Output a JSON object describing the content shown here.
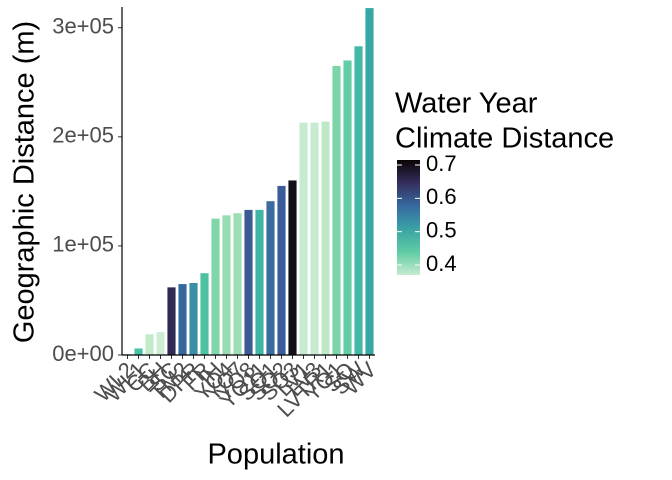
{
  "chart_data": {
    "type": "bar",
    "xlabel": "Population",
    "ylabel": "Geographic Distance (m)",
    "categories": [
      "WL2",
      "WL1",
      "CC",
      "BH",
      "SC",
      "TM2",
      "DPR",
      "FR",
      "IH",
      "YO4",
      "YO7",
      "YO8",
      "YO11",
      "SQ1",
      "SQ2",
      "SQ3",
      "LV1",
      "LV3",
      "LVTR1",
      "YO1",
      "SQ",
      "SW",
      "WV"
    ],
    "values": [
      1000,
      6000,
      19000,
      21000,
      62000,
      65000,
      66000,
      75000,
      125000,
      128000,
      130000,
      133000,
      133000,
      141000,
      155000,
      160000,
      213000,
      213000,
      214000,
      265000,
      270000,
      283000,
      318000
    ],
    "colors": [
      "#c6ebd0",
      "#48c1a4",
      "#c2eacb",
      "#cdeed4",
      "#2e2a54",
      "#35679f",
      "#3a8fa6",
      "#4dc2a3",
      "#7fd6a9",
      "#96dcb0",
      "#9ddeb3",
      "#3b5b95",
      "#40b5a6",
      "#3b6ca0",
      "#3a5c9a",
      "#120e1a",
      "#c6ebd0",
      "#c6ebd0",
      "#bfe8c9",
      "#7cd5a8",
      "#62cda4",
      "#43b9a5",
      "#36a8a4"
    ],
    "ylim": [
      0,
      319000
    ],
    "yticks": [
      {
        "value": 0,
        "label": "0e+00"
      },
      {
        "value": 100000,
        "label": "1e+05"
      },
      {
        "value": 200000,
        "label": "2e+05"
      },
      {
        "value": 300000,
        "label": "3e+05"
      }
    ],
    "colorbar": {
      "title": [
        "Water Year",
        " Climate Distance"
      ],
      "lim": [
        0.37,
        0.715
      ],
      "ticks": [
        0.4,
        0.5,
        0.6,
        0.7
      ],
      "colors": [
        "#c6ebd0",
        "#5fcca3",
        "#3aa3a6",
        "#366a9f",
        "#342f5d",
        "#0b0405"
      ]
    }
  }
}
